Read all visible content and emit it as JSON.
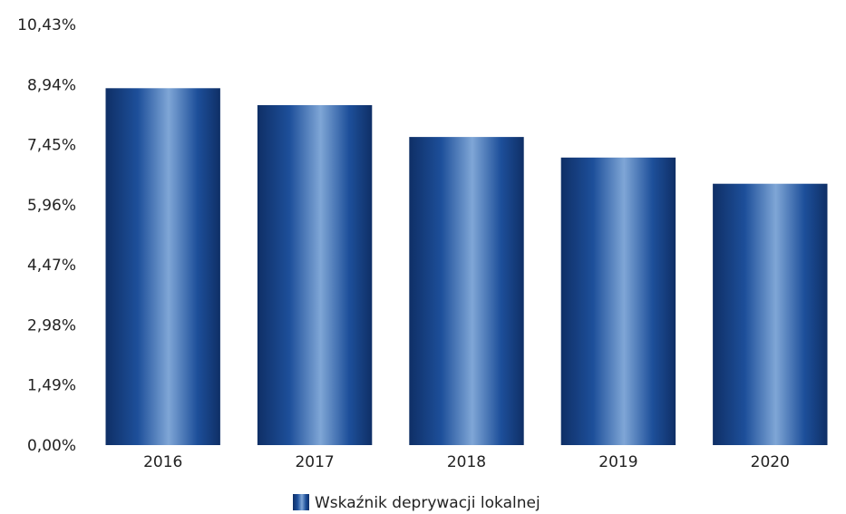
{
  "chart_data": {
    "type": "bar",
    "categories": [
      "2016",
      "2017",
      "2018",
      "2019",
      "2020"
    ],
    "series": [
      {
        "name": "Wskaźnik deprywacji lokalnej",
        "values": [
          8.85,
          8.43,
          7.64,
          7.13,
          6.48
        ]
      }
    ],
    "y_ticks": [
      "0,00%",
      "1,49%",
      "2,98%",
      "4,47%",
      "5,96%",
      "7,45%",
      "8,94%",
      "10,43%"
    ],
    "ylim": [
      0,
      10.43
    ],
    "grid": false,
    "legend_position": "bottom-center",
    "bar_color": "#1d4f9a",
    "bar_highlight_color": "#7fa6d6",
    "bar_dark_color": "#0f2f66"
  }
}
